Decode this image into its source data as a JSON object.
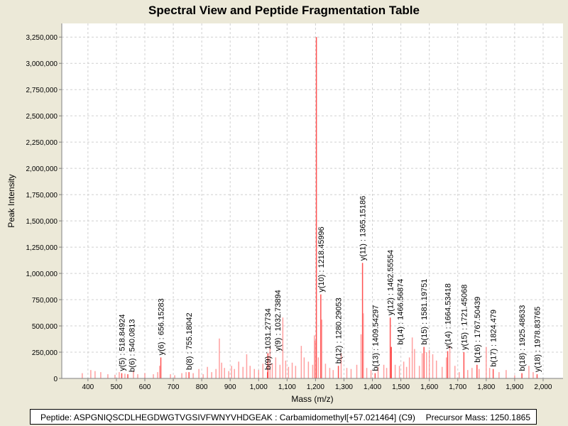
{
  "chart_data": {
    "type": "bar",
    "title": "Spectral View and Peptide Fragmentation Table",
    "xlabel": "Mass (m/z)",
    "ylabel": "Peak Intensity",
    "xlim": [
      308,
      2070
    ],
    "ylim": [
      0,
      3380000
    ],
    "grid": true,
    "x_ticks": [
      400,
      500,
      600,
      700,
      800,
      900,
      1000,
      1100,
      1200,
      1300,
      1400,
      1500,
      1600,
      1700,
      1800,
      1900,
      2000
    ],
    "x_tick_labels": [
      "400",
      "500",
      "600",
      "700",
      "800",
      "900",
      "1,000",
      "1,100",
      "1,200",
      "1,300",
      "1,400",
      "1,500",
      "1,600",
      "1,700",
      "1,800",
      "1,900",
      "2,000"
    ],
    "y_ticks": [
      0,
      250000,
      500000,
      750000,
      1000000,
      1250000,
      1500000,
      1750000,
      2000000,
      2250000,
      2500000,
      2750000,
      3000000,
      3250000
    ],
    "y_tick_labels": [
      "0",
      "250,000",
      "500,000",
      "750,000",
      "1,000,000",
      "1,250,000",
      "1,500,000",
      "1,750,000",
      "2,000,000",
      "2,250,000",
      "2,500,000",
      "2,750,000",
      "3,000,000",
      "3,250,000"
    ],
    "colors": {
      "peak": "#ff8080",
      "peak_dark": "#ff3333",
      "grid": "#d0d0d0"
    },
    "peaks": [
      [
        380,
        50000
      ],
      [
        410,
        80000
      ],
      [
        425,
        70000
      ],
      [
        445,
        60000
      ],
      [
        470,
        40000
      ],
      [
        495,
        35000
      ],
      [
        510,
        60000
      ],
      [
        518.8,
        50000
      ],
      [
        530,
        45000
      ],
      [
        540.1,
        40000
      ],
      [
        560,
        70000
      ],
      [
        575,
        40000
      ],
      [
        600,
        50000
      ],
      [
        630,
        40000
      ],
      [
        645,
        60000
      ],
      [
        656.2,
        200000
      ],
      [
        652,
        120000
      ],
      [
        690,
        40000
      ],
      [
        705,
        30000
      ],
      [
        730,
        50000
      ],
      [
        745,
        60000
      ],
      [
        755.2,
        60000
      ],
      [
        770,
        50000
      ],
      [
        790,
        90000
      ],
      [
        805,
        40000
      ],
      [
        820,
        110000
      ],
      [
        835,
        60000
      ],
      [
        850,
        90000
      ],
      [
        862,
        380000
      ],
      [
        870,
        150000
      ],
      [
        880,
        100000
      ],
      [
        895,
        70000
      ],
      [
        905,
        120000
      ],
      [
        915,
        90000
      ],
      [
        930,
        160000
      ],
      [
        945,
        110000
      ],
      [
        958,
        230000
      ],
      [
        970,
        120000
      ],
      [
        985,
        90000
      ],
      [
        1000,
        80000
      ],
      [
        1015,
        140000
      ],
      [
        1031.3,
        60000
      ],
      [
        1032.7,
        240000
      ],
      [
        1040,
        290000
      ],
      [
        1048,
        140000
      ],
      [
        1060,
        200000
      ],
      [
        1075,
        130000
      ],
      [
        1085,
        580000
      ],
      [
        1095,
        170000
      ],
      [
        1105,
        110000
      ],
      [
        1118,
        150000
      ],
      [
        1130,
        120000
      ],
      [
        1150,
        310000
      ],
      [
        1160,
        200000
      ],
      [
        1175,
        160000
      ],
      [
        1190,
        130000
      ],
      [
        1196,
        410000
      ],
      [
        1199,
        360000
      ],
      [
        1203,
        3250000
      ],
      [
        1210,
        200000
      ],
      [
        1218.5,
        800000
      ],
      [
        1222,
        560000
      ],
      [
        1235,
        140000
      ],
      [
        1250,
        100000
      ],
      [
        1262,
        80000
      ],
      [
        1280.3,
        120000
      ],
      [
        1290,
        240000
      ],
      [
        1310,
        100000
      ],
      [
        1325,
        90000
      ],
      [
        1345,
        130000
      ],
      [
        1360,
        420000
      ],
      [
        1365.2,
        1100000
      ],
      [
        1368,
        620000
      ],
      [
        1380,
        100000
      ],
      [
        1395,
        80000
      ],
      [
        1409.5,
        50000
      ],
      [
        1420,
        110000
      ],
      [
        1440,
        130000
      ],
      [
        1450,
        100000
      ],
      [
        1462.6,
        580000
      ],
      [
        1466.6,
        300000
      ],
      [
        1480,
        130000
      ],
      [
        1495,
        120000
      ],
      [
        1510,
        160000
      ],
      [
        1520,
        110000
      ],
      [
        1530,
        200000
      ],
      [
        1540,
        390000
      ],
      [
        1548,
        280000
      ],
      [
        1565,
        120000
      ],
      [
        1575,
        240000
      ],
      [
        1581.2,
        300000
      ],
      [
        1590,
        250000
      ],
      [
        1600,
        270000
      ],
      [
        1612,
        230000
      ],
      [
        1625,
        170000
      ],
      [
        1645,
        110000
      ],
      [
        1660,
        200000
      ],
      [
        1664.5,
        260000
      ],
      [
        1672,
        310000
      ],
      [
        1690,
        120000
      ],
      [
        1705,
        60000
      ],
      [
        1721.5,
        250000
      ],
      [
        1735,
        80000
      ],
      [
        1750,
        100000
      ],
      [
        1767.5,
        130000
      ],
      [
        1775,
        90000
      ],
      [
        1800,
        300000
      ],
      [
        1812,
        100000
      ],
      [
        1824.5,
        90000
      ],
      [
        1845,
        60000
      ],
      [
        1870,
        80000
      ],
      [
        1900,
        30000
      ],
      [
        1925.5,
        50000
      ],
      [
        1950,
        120000
      ],
      [
        1965,
        60000
      ],
      [
        1978.8,
        40000
      ]
    ],
    "annotations": [
      {
        "mass": 518.8,
        "label": "y(5) : 518.84924"
      },
      {
        "mass": 540.1,
        "label": "b(6) : 540.0813"
      },
      {
        "mass": 656.2,
        "label": "y(6) : 656.15283"
      },
      {
        "mass": 755.2,
        "label": "b(8) : 755.18042"
      },
      {
        "mass": 1031.3,
        "label": "b(9) : 1031.27734"
      },
      {
        "mass": 1032.7,
        "label": "y(9) : 1032.73894"
      },
      {
        "mass": 1218.5,
        "label": "y(10) : 1218.45996"
      },
      {
        "mass": 1280.3,
        "label": "b(12) : 1280.29053"
      },
      {
        "mass": 1365.2,
        "label": "y(11) : 1365.15186"
      },
      {
        "mass": 1409.5,
        "label": "b(13) : 1409.54297"
      },
      {
        "mass": 1462.6,
        "label": "y(12) : 1462.55554"
      },
      {
        "mass": 1466.6,
        "label": "b(14) : 1466.56874"
      },
      {
        "mass": 1581.2,
        "label": "b(15) : 1581.19751"
      },
      {
        "mass": 1664.5,
        "label": "y(14) : 1664.53418"
      },
      {
        "mass": 1721.5,
        "label": "y(15) : 1721.45068"
      },
      {
        "mass": 1767.5,
        "label": "b(16) : 1767.50439"
      },
      {
        "mass": 1824.5,
        "label": "b(17) : 1824.479"
      },
      {
        "mass": 1925.5,
        "label": "b(18) : 1925.48633"
      },
      {
        "mass": 1978.8,
        "label": "y(18) : 1978.83765"
      }
    ]
  },
  "footer": {
    "peptide": "Peptide: ASPGNIQSCDLHEGDWGTVGSIVFWNYVHDGEAK : Carbamidomethyl[+57.021464] (C9)",
    "precursor": "Precursor Mass: 1250.1865"
  }
}
